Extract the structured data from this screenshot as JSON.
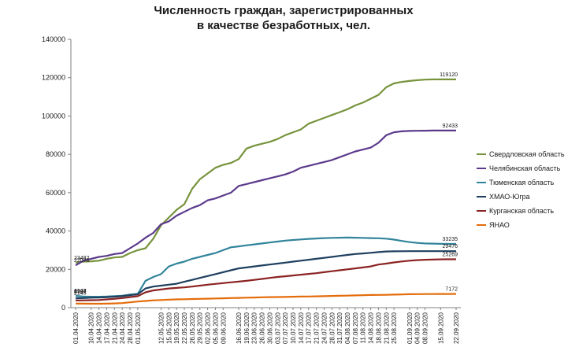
{
  "chart_data": {
    "type": "line",
    "title_line1": "Численность граждан, зарегистрированных",
    "title_line2": "в качестве безработных, чел.",
    "xlabel": "",
    "ylabel": "",
    "ylim": [
      0,
      140000
    ],
    "yticks": [
      0,
      20000,
      40000,
      60000,
      80000,
      100000,
      120000,
      140000
    ],
    "ytick_labels": [
      "0",
      "20000",
      "40000",
      "60000",
      "80000",
      "100000",
      "120000",
      "140000"
    ],
    "grid": false,
    "legend_position": "right",
    "x": [
      "01.04.2020",
      "07.04.2020",
      "10.04.2020",
      "14.04.2020",
      "17.04.2020",
      "21.04.2020",
      "24.04.2020",
      "28.04.2020",
      "01.05.2020",
      "05.05.2020",
      "08.05.2020",
      "12.05.2020",
      "15.05.2020",
      "19.05.2020",
      "22.05.2020",
      "26.05.2020",
      "29.05.2020",
      "02.06.2020",
      "05.06.2020",
      "09.06.2020",
      "12.06.2020",
      "16.06.2020",
      "19.06.2020",
      "23.06.2020",
      "26.06.2020",
      "30.06.2020",
      "03.07.2020",
      "07.07.2020",
      "10.07.2020",
      "14.07.2020",
      "17.07.2020",
      "21.07.2020",
      "24.07.2020",
      "28.07.2020",
      "31.07.2020",
      "04.08.2020",
      "07.08.2020",
      "11.08.2020",
      "14.08.2020",
      "18.08.2020",
      "21.08.2020",
      "25.08.2020",
      "28.08.2020",
      "01.09.2020",
      "04.09.2020",
      "08.09.2020",
      "11.09.2020",
      "15.09.2020",
      "18.09.2020",
      "22.09.2020"
    ],
    "x_tick_labels": [
      "01.04.2020",
      "10.04.2020",
      "14.04.2020",
      "17.04.2020",
      "21.04.2020",
      "24.04.2020",
      "28.04.2020",
      "01.05.2020",
      "12.05.2020",
      "15.05.2020",
      "19.05.2020",
      "22.05.2020",
      "26.05.2020",
      "29.05.2020",
      "02.06.2020",
      "05.06.2020",
      "09.06.2020",
      "16.06.2020",
      "19.06.2020",
      "23.06.2020",
      "26.06.2020",
      "30.06.2020",
      "03.07.2020",
      "07.07.2020",
      "10.07.2020",
      "14.07.2020",
      "17.07.2020",
      "21.07.2020",
      "24.07.2020",
      "28.07.2020",
      "31.07.2020",
      "04.08.2020",
      "07.08.2020",
      "11.08.2020",
      "14.08.2020",
      "18.08.2020",
      "21.08.2020",
      "25.08.2020",
      "01.09.2020",
      "04.09.2020",
      "08.09.2020",
      "15.09.2020",
      "22.09.2020"
    ],
    "series": [
      {
        "name": "Свердловская область",
        "color": "#77933c",
        "values": [
          23482,
          24000,
          24200,
          24500,
          25500,
          26200,
          26500,
          28500,
          30000,
          31000,
          36000,
          43000,
          47000,
          51000,
          54000,
          62000,
          67000,
          70000,
          73000,
          74500,
          75500,
          77500,
          83000,
          84500,
          85500,
          86500,
          88000,
          90000,
          91500,
          93000,
          96000,
          97500,
          99000,
          100500,
          102000,
          103500,
          105500,
          107000,
          109000,
          111000,
          115000,
          117000,
          117800,
          118300,
          118700,
          119000,
          119100,
          119110,
          119115,
          119120
        ],
        "labels": [
          {
            "i": 0,
            "text": "23482"
          },
          {
            "i": 49,
            "text": "119120"
          }
        ]
      },
      {
        "name": "Челябинская область",
        "color": "#5b3a8c",
        "values": [
          22076,
          24500,
          25500,
          26500,
          27000,
          28000,
          28500,
          31000,
          33500,
          36500,
          39000,
          43500,
          45000,
          48000,
          50000,
          52000,
          53500,
          56000,
          57000,
          58500,
          60000,
          63500,
          64500,
          65500,
          66500,
          67500,
          68500,
          69500,
          71000,
          73000,
          74000,
          75000,
          76000,
          77000,
          78500,
          80000,
          81500,
          82500,
          83500,
          86000,
          90000,
          91500,
          92000,
          92200,
          92300,
          92350,
          92400,
          92420,
          92430,
          92433
        ],
        "labels": [
          {
            "i": 0,
            "text": "22076"
          },
          {
            "i": 49,
            "text": "92433"
          }
        ]
      },
      {
        "name": "Тюменская область",
        "color": "#31849b",
        "values": [
          6144,
          5800,
          5700,
          5700,
          5800,
          6000,
          6200,
          6800,
          7200,
          14000,
          16000,
          17500,
          21500,
          23000,
          24000,
          25500,
          26500,
          27500,
          28500,
          30000,
          31500,
          32000,
          32500,
          33000,
          33500,
          34000,
          34500,
          35000,
          35300,
          35600,
          35900,
          36100,
          36300,
          36400,
          36500,
          36600,
          36500,
          36400,
          36300,
          36200,
          36000,
          35500,
          34800,
          34200,
          33800,
          33500,
          33400,
          33300,
          33250,
          33235
        ],
        "labels": [
          {
            "i": 0,
            "text": "6144"
          },
          {
            "i": 49,
            "text": "33235"
          }
        ]
      },
      {
        "name": "ХМАО-Югра",
        "color": "#1f3f5f",
        "values": [
          4927,
          5000,
          5200,
          5300,
          5500,
          5700,
          6000,
          6500,
          7000,
          10000,
          11000,
          11500,
          12000,
          12500,
          13500,
          14500,
          15500,
          16500,
          17500,
          18500,
          19500,
          20500,
          21000,
          21500,
          22000,
          22500,
          23000,
          23500,
          24000,
          24500,
          25000,
          25500,
          26000,
          26500,
          27000,
          27500,
          28000,
          28300,
          28600,
          29000,
          29300,
          29400,
          29450,
          29460,
          29470,
          29470,
          29475,
          29476,
          29476,
          29476
        ],
        "labels": [
          {
            "i": 0,
            "text": "4927"
          },
          {
            "i": 49,
            "text": "29476"
          }
        ]
      },
      {
        "name": "Курганская область",
        "color": "#8b2323",
        "values": [
          3737,
          3800,
          3900,
          4000,
          4300,
          4600,
          5000,
          5500,
          6000,
          8000,
          9000,
          9500,
          10000,
          10300,
          10600,
          11000,
          11500,
          12000,
          12400,
          12800,
          13200,
          13600,
          14000,
          14500,
          15000,
          15500,
          16000,
          16400,
          16800,
          17200,
          17600,
          18000,
          18500,
          19000,
          19500,
          20000,
          20500,
          21000,
          21500,
          22500,
          23000,
          23600,
          24100,
          24500,
          24800,
          25000,
          25100,
          25200,
          25250,
          25269
        ],
        "labels": [
          {
            "i": 0,
            "text": "3737"
          },
          {
            "i": 49,
            "text": "25269"
          }
        ]
      },
      {
        "name": "ЯНАО",
        "color": "#e46c0a",
        "values": [
          2145,
          2100,
          2050,
          2050,
          2100,
          2200,
          2400,
          2800,
          3200,
          3500,
          3800,
          4000,
          4200,
          4300,
          4400,
          4500,
          4600,
          4700,
          4800,
          4900,
          5000,
          5100,
          5200,
          5300,
          5400,
          5500,
          5550,
          5600,
          5700,
          5800,
          5850,
          5900,
          6000,
          6100,
          6200,
          6300,
          6400,
          6500,
          6600,
          6650,
          6700,
          6800,
          6900,
          7000,
          7050,
          7100,
          7120,
          7140,
          7160,
          7172
        ],
        "labels": [
          {
            "i": 0,
            "text": "2145"
          },
          {
            "i": 49,
            "text": "7172"
          }
        ]
      }
    ]
  }
}
